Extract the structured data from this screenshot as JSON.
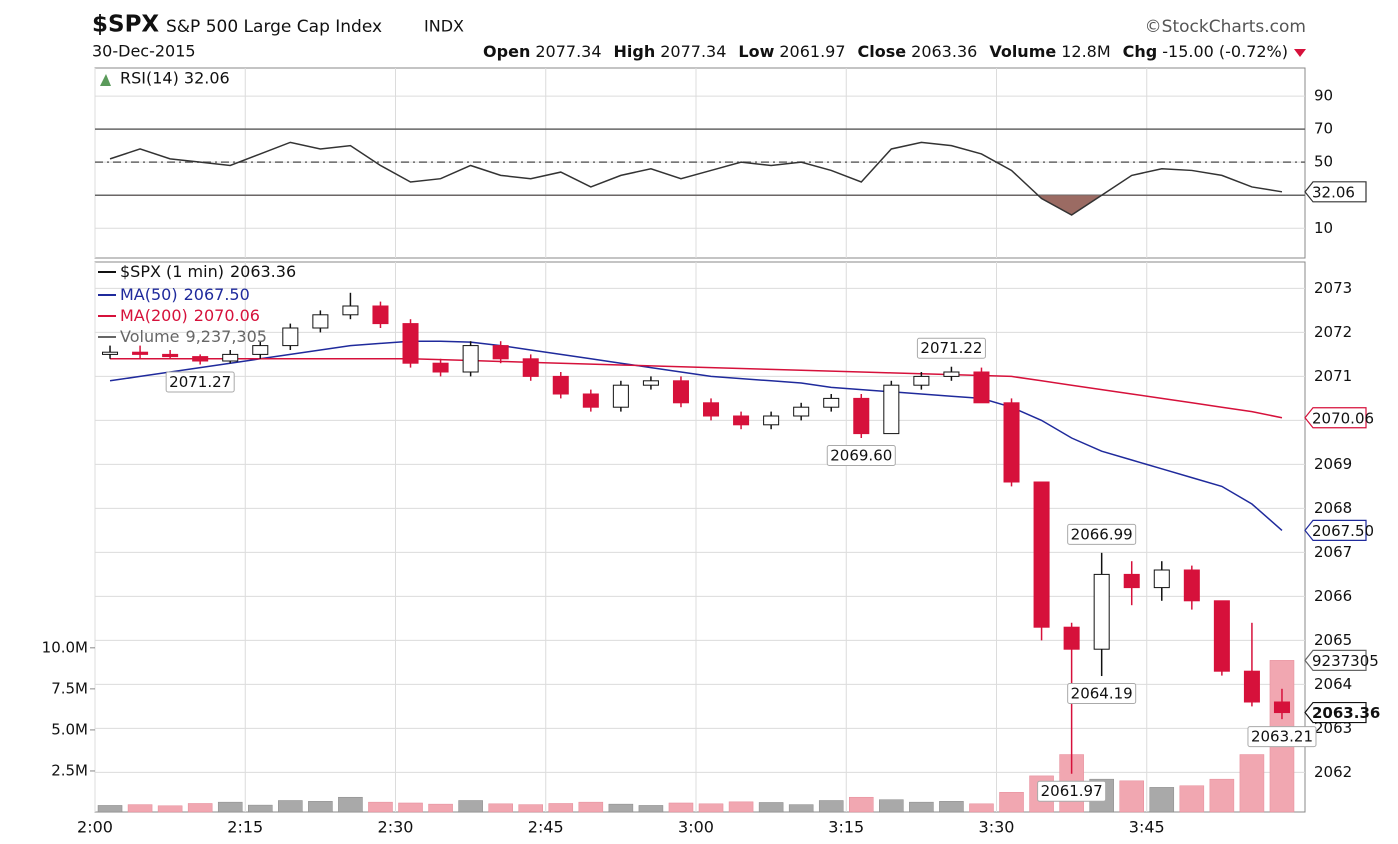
{
  "header": {
    "symbol": "$SPX",
    "name": "S&P 500 Large Cap Index",
    "exchange": "INDX",
    "source": "©StockCharts.com",
    "date": "30-Dec-2015",
    "quote": [
      {
        "label": "Open",
        "value": "2077.34"
      },
      {
        "label": "High",
        "value": "2077.34"
      },
      {
        "label": "Low",
        "value": "2061.97"
      },
      {
        "label": "Close",
        "value": "2063.36"
      },
      {
        "label": "Volume",
        "value": "12.8M"
      },
      {
        "label": "Chg",
        "value": "-15.00 (-0.72%)"
      }
    ]
  },
  "chart_data": [
    {
      "type": "line",
      "legend": "RSI(14) 32.06",
      "last_label": "32.06",
      "color": "#333333",
      "values": [
        52,
        58,
        52,
        50,
        48,
        55,
        62,
        58,
        60,
        48,
        38,
        40,
        48,
        42,
        40,
        44,
        35,
        42,
        46,
        40,
        45,
        50,
        48,
        50,
        45,
        38,
        58,
        62,
        60,
        55,
        45,
        28,
        18,
        30,
        42,
        46,
        45,
        42,
        35,
        32.06
      ],
      "overbought": 70,
      "midline": 50,
      "oversold": 30,
      "shade_color": "#9b6b63",
      "ylim": [
        -8,
        107
      ],
      "yticks": [
        10,
        50,
        70,
        90
      ]
    },
    {
      "type": "candlestick",
      "name": "$SPX (1 min)",
      "last_label": "2063.36",
      "categories": [
        "2:00",
        null,
        null,
        null,
        null,
        "2:15",
        null,
        null,
        null,
        null,
        "2:30",
        null,
        null,
        null,
        null,
        "2:45",
        null,
        null,
        null,
        null,
        "3:00",
        null,
        null,
        null,
        null,
        "3:15",
        null,
        null,
        null,
        null,
        "3:30",
        null,
        null,
        null,
        null,
        "3:45",
        null,
        null,
        null,
        null
      ],
      "open": [
        2071.5,
        2071.55,
        2071.5,
        2071.45,
        2071.35,
        2071.5,
        2071.7,
        2072.1,
        2072.4,
        2072.6,
        2072.2,
        2071.3,
        2071.1,
        2071.7,
        2071.4,
        2071.0,
        2070.6,
        2070.3,
        2070.8,
        2070.9,
        2070.4,
        2070.1,
        2069.9,
        2070.1,
        2070.3,
        2070.5,
        2069.7,
        2070.8,
        2071.0,
        2071.1,
        2070.4,
        2068.6,
        2065.3,
        2064.8,
        2066.5,
        2066.2,
        2066.6,
        2065.9,
        2064.3,
        2063.6
      ],
      "high": [
        2071.7,
        2071.7,
        2071.6,
        2071.5,
        2071.6,
        2071.8,
        2072.2,
        2072.5,
        2072.9,
        2072.7,
        2072.3,
        2071.4,
        2071.8,
        2071.8,
        2071.5,
        2071.1,
        2070.7,
        2070.9,
        2071.0,
        2071.0,
        2070.5,
        2070.2,
        2070.2,
        2070.4,
        2070.6,
        2070.6,
        2070.9,
        2071.1,
        2071.22,
        2071.2,
        2070.5,
        2068.6,
        2065.4,
        2066.99,
        2066.8,
        2066.8,
        2066.7,
        2065.9,
        2065.4,
        2063.9
      ],
      "low": [
        2071.4,
        2071.4,
        2071.4,
        2071.27,
        2071.3,
        2071.4,
        2071.6,
        2072.0,
        2072.3,
        2072.1,
        2071.2,
        2071.0,
        2071.0,
        2071.3,
        2070.9,
        2070.5,
        2070.2,
        2070.2,
        2070.7,
        2070.3,
        2070.0,
        2069.8,
        2069.8,
        2070.0,
        2070.2,
        2069.6,
        2069.7,
        2070.7,
        2070.9,
        2070.5,
        2068.5,
        2065.0,
        2061.97,
        2064.19,
        2065.8,
        2065.9,
        2065.7,
        2064.2,
        2063.5,
        2063.21
      ],
      "close": [
        2071.55,
        2071.5,
        2071.45,
        2071.35,
        2071.5,
        2071.7,
        2072.1,
        2072.4,
        2072.6,
        2072.2,
        2071.3,
        2071.1,
        2071.7,
        2071.4,
        2071.0,
        2070.6,
        2070.3,
        2070.8,
        2070.9,
        2070.4,
        2070.1,
        2069.9,
        2070.1,
        2070.3,
        2070.5,
        2069.7,
        2070.8,
        2071.0,
        2071.1,
        2070.4,
        2068.6,
        2065.3,
        2064.8,
        2066.5,
        2066.2,
        2066.6,
        2065.9,
        2064.3,
        2063.6,
        2063.36
      ],
      "up_color": "#ffffff",
      "down_color": "#d6113b",
      "series": [
        {
          "name": "MA(50)",
          "last_label": "2067.50",
          "color": "#1f2a9c",
          "values": [
            2070.9,
            2071.0,
            2071.1,
            2071.2,
            2071.3,
            2071.4,
            2071.5,
            2071.6,
            2071.7,
            2071.75,
            2071.8,
            2071.8,
            2071.78,
            2071.7,
            2071.6,
            2071.5,
            2071.4,
            2071.3,
            2071.2,
            2071.1,
            2071.0,
            2070.95,
            2070.9,
            2070.85,
            2070.75,
            2070.7,
            2070.65,
            2070.6,
            2070.55,
            2070.5,
            2070.3,
            2070.0,
            2069.6,
            2069.3,
            2069.1,
            2068.9,
            2068.7,
            2068.5,
            2068.1,
            2067.5
          ]
        },
        {
          "name": "MA(200)",
          "last_label": "2070.06",
          "color": "#d6113b",
          "values": [
            2071.4,
            2071.4,
            2071.4,
            2071.4,
            2071.4,
            2071.4,
            2071.4,
            2071.4,
            2071.4,
            2071.4,
            2071.4,
            2071.38,
            2071.36,
            2071.34,
            2071.32,
            2071.3,
            2071.28,
            2071.26,
            2071.24,
            2071.22,
            2071.2,
            2071.18,
            2071.16,
            2071.14,
            2071.12,
            2071.1,
            2071.08,
            2071.06,
            2071.04,
            2071.02,
            2071.0,
            2070.9,
            2070.8,
            2070.7,
            2070.6,
            2070.5,
            2070.4,
            2070.3,
            2070.2,
            2070.06
          ]
        }
      ],
      "volume": {
        "name": "Volume",
        "legend_value": "9,237,305",
        "last_label": "9237305",
        "up_color": "#a9a9a9",
        "down_color": "#f1a7b1",
        "values": [
          400000,
          450000,
          380000,
          520000,
          600000,
          420000,
          700000,
          650000,
          900000,
          600000,
          550000,
          480000,
          700000,
          500000,
          450000,
          520000,
          600000,
          480000,
          400000,
          550000,
          500000,
          620000,
          580000,
          450000,
          700000,
          900000,
          750000,
          600000,
          650000,
          500000,
          1200000,
          2200000,
          3500000,
          2000000,
          1900000,
          1500000,
          1600000,
          2000000,
          3500000,
          9237305
        ]
      },
      "annotations": [
        {
          "value": 2071.27,
          "label": "2071.27"
        },
        {
          "value": 2069.6,
          "label": "2069.60"
        },
        {
          "value": 2071.22,
          "label": "2071.22"
        },
        {
          "value": 2061.97,
          "label": "2061.97"
        },
        {
          "value": 2064.19,
          "label": "2064.19"
        },
        {
          "value": 2066.99,
          "label": "2066.99"
        },
        {
          "value": 2063.21,
          "label": "2063.21"
        }
      ],
      "ylim": [
        2061.1,
        2073.6
      ],
      "yticks": [
        2062,
        2063,
        2064,
        2065,
        2066,
        2067,
        2068,
        2069,
        2070,
        2071,
        2072,
        2073
      ],
      "y2lim": [
        0,
        33500000
      ],
      "y2ticks": [
        {
          "value": 2500000,
          "label": "2.5M"
        },
        {
          "value": 5000000,
          "label": "5.0M"
        },
        {
          "value": 7500000,
          "label": "7.5M"
        },
        {
          "value": 10000000,
          "label": "10.0M"
        }
      ]
    }
  ]
}
